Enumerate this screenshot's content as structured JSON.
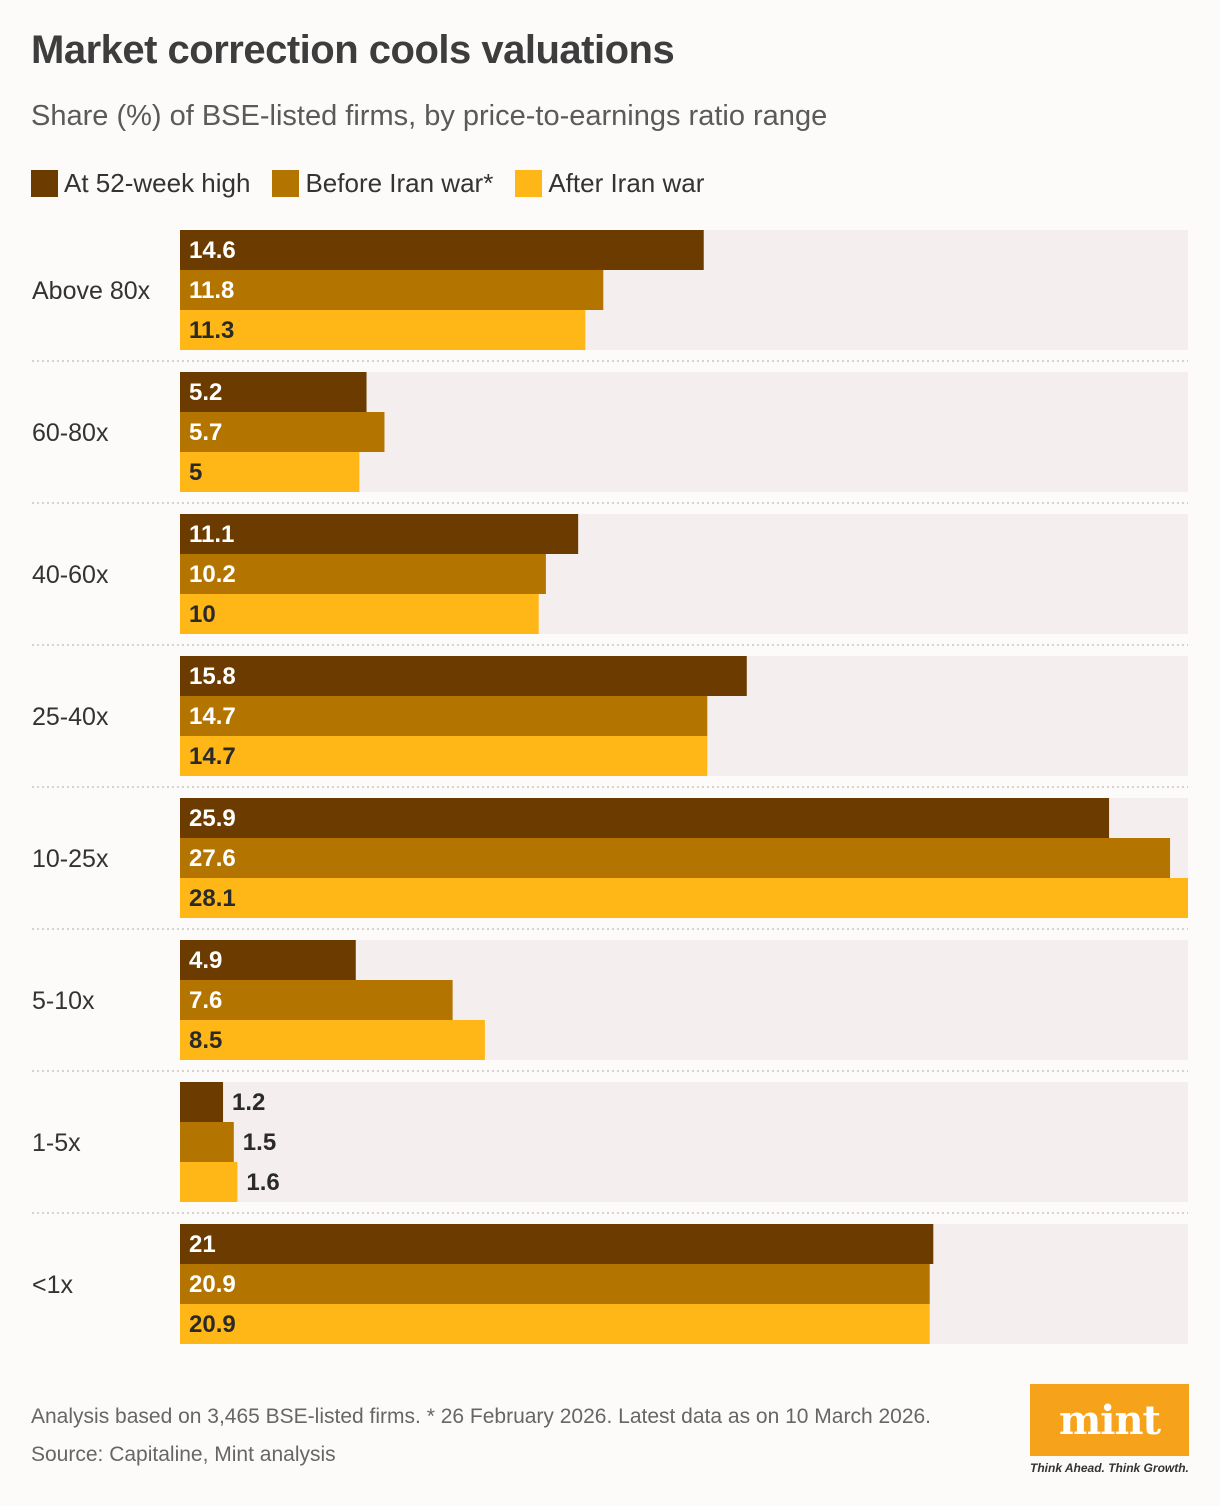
{
  "header": {
    "title": "Market correction cools valuations",
    "subtitle": "Share (%) of BSE-listed firms, by price-to-earnings ratio range"
  },
  "legend": [
    {
      "label": "At 52-week high",
      "color": "#6b3b00"
    },
    {
      "label": "Before Iran war*",
      "color": "#b37500"
    },
    {
      "label": "After Iran war",
      "color": "#ffb718"
    }
  ],
  "chart_data": {
    "type": "bar",
    "orientation": "horizontal",
    "title": "Market correction cools valuations",
    "subtitle": "Share (%) of BSE-listed firms, by price-to-earnings ratio range",
    "categories": [
      "Above 80x",
      "60-80x",
      "40-60x",
      "25-40x",
      "10-25x",
      "5-10x",
      "1-5x",
      "<1x"
    ],
    "series": [
      {
        "name": "At 52-week high",
        "color": "#6b3b00",
        "values": [
          14.6,
          5.2,
          11.1,
          15.8,
          25.9,
          4.9,
          1.2,
          21
        ]
      },
      {
        "name": "Before Iran war*",
        "color": "#b37500",
        "values": [
          11.8,
          5.7,
          10.2,
          14.7,
          27.6,
          7.6,
          1.5,
          20.9
        ]
      },
      {
        "name": "After Iran war",
        "color": "#ffb718",
        "values": [
          11.3,
          5,
          10,
          14.7,
          28.1,
          8.5,
          1.6,
          20.9
        ]
      }
    ],
    "xlim": [
      0,
      28.1
    ],
    "grid": false,
    "legend_position": "top-left",
    "band_color": "#f4efee"
  },
  "footer": {
    "note": "Analysis based on 3,465 BSE-listed firms. * 26 February 2026. Latest data as on 10 March 2026.",
    "source": "Source: Capitaline, Mint analysis"
  },
  "logo": {
    "text": "mint",
    "tagline": "Think Ahead. Think Growth."
  }
}
